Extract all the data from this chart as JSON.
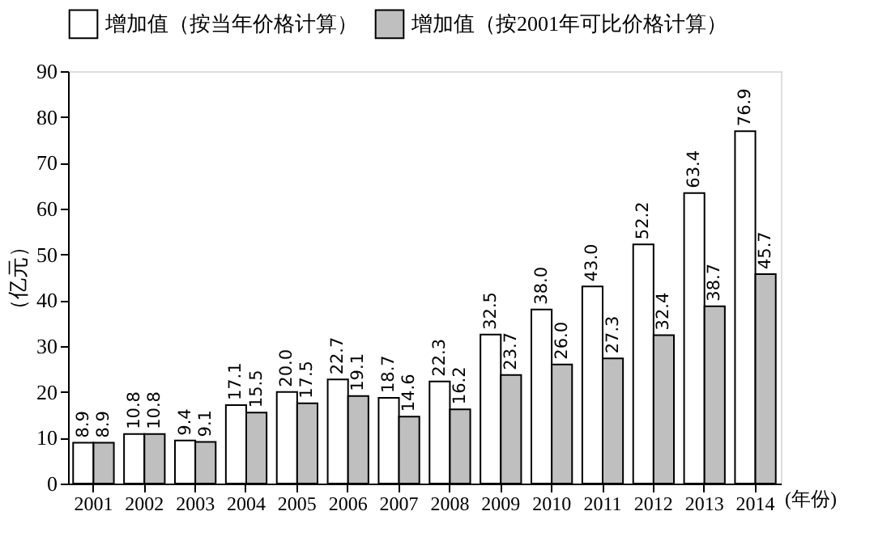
{
  "chart_data": {
    "type": "bar",
    "ylabel": "（亿元）",
    "xlabel": "(年份)",
    "categories": [
      "2001",
      "2002",
      "2003",
      "2004",
      "2005",
      "2006",
      "2007",
      "2008",
      "2009",
      "2010",
      "2011",
      "2012",
      "2013",
      "2014"
    ],
    "series": [
      {
        "name": "增加值（按当年价格计算）",
        "color": "#ffffff",
        "values": [
          8.9,
          10.8,
          9.4,
          17.1,
          20.0,
          22.7,
          18.7,
          22.3,
          32.5,
          38.0,
          43.0,
          52.2,
          63.4,
          76.9
        ],
        "value_labels": [
          "8.9",
          "10.8",
          "9.4",
          "17.1",
          "20.0",
          "22.7",
          "18.7",
          "22.3",
          "32.5",
          "38.0",
          "43.0",
          "52.2",
          "63.4",
          "76.9"
        ]
      },
      {
        "name": "增加值（按2001年可比价格计算）",
        "color": "#bfbfbf",
        "values": [
          8.9,
          10.8,
          9.1,
          15.5,
          17.5,
          19.1,
          14.6,
          16.2,
          23.7,
          26.0,
          27.3,
          32.4,
          38.7,
          45.7
        ],
        "value_labels": [
          "8.9",
          "10.8",
          "9.1",
          "15.5",
          "17.5",
          "19.1",
          "14.6",
          "16.2",
          "23.7",
          "26.0",
          "27.3",
          "32.4",
          "38.7",
          "45.7"
        ]
      }
    ],
    "ylim": [
      0,
      90
    ],
    "yticks": [
      0,
      10,
      20,
      30,
      40,
      50,
      60,
      70,
      80,
      90
    ],
    "grid": false,
    "legend": "top"
  }
}
